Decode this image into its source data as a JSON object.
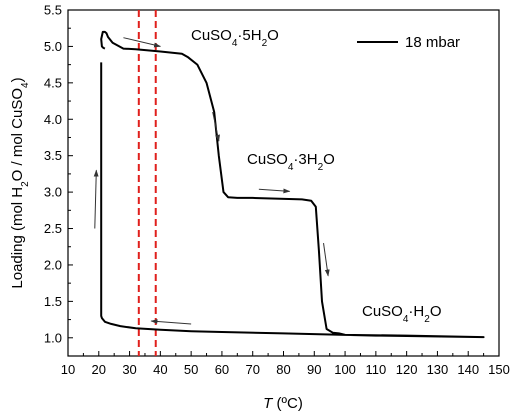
{
  "chart_data": {
    "type": "line",
    "xlabel_italic": "T",
    "xlabel_rest": " (ºC)",
    "ylabel": "Loading (mol H2O / mol CuSO4)",
    "xlim": [
      10,
      150
    ],
    "ylim": [
      0.75,
      5.5
    ],
    "x_ticks": [
      10,
      20,
      30,
      40,
      50,
      60,
      70,
      80,
      90,
      100,
      110,
      120,
      130,
      140,
      150
    ],
    "y_ticks": [
      1.0,
      1.5,
      2.0,
      2.5,
      3.0,
      3.5,
      4.0,
      4.5,
      5.0,
      5.5
    ],
    "grid": false,
    "legend": {
      "position": "top-right",
      "entries": [
        "18 mbar"
      ]
    },
    "series": [
      {
        "name": "18 mbar",
        "color": "#000000",
        "points": [
          [
            20.8,
            4.78
          ],
          [
            20.8,
            1.3
          ],
          [
            21.0,
            1.27
          ],
          [
            22.0,
            1.22
          ],
          [
            24.0,
            1.19
          ],
          [
            27.0,
            1.16
          ],
          [
            32.0,
            1.13
          ],
          [
            40.0,
            1.11
          ],
          [
            50.0,
            1.09
          ],
          [
            60.0,
            1.08
          ],
          [
            80.0,
            1.06
          ],
          [
            100.0,
            1.04
          ],
          [
            120.0,
            1.03
          ],
          [
            145.0,
            1.01
          ],
          [
            110.0,
            1.03
          ],
          [
            100.0,
            1.04
          ],
          [
            98.0,
            1.06
          ],
          [
            96.0,
            1.07
          ],
          [
            94.0,
            1.12
          ],
          [
            92.5,
            1.5
          ],
          [
            91.5,
            2.2
          ],
          [
            90.5,
            2.8
          ],
          [
            89.0,
            2.88
          ],
          [
            86.0,
            2.9
          ],
          [
            70.0,
            2.92
          ],
          [
            65.0,
            2.92
          ],
          [
            62.0,
            2.93
          ],
          [
            60.5,
            3.0
          ],
          [
            59.0,
            3.5
          ],
          [
            57.5,
            4.1
          ],
          [
            55.0,
            4.5
          ],
          [
            52.0,
            4.75
          ],
          [
            49.0,
            4.85
          ],
          [
            47.0,
            4.9
          ],
          [
            40.0,
            4.93
          ],
          [
            32.0,
            4.96
          ],
          [
            28.0,
            4.97
          ],
          [
            24.5,
            5.05
          ],
          [
            23.0,
            5.13
          ],
          [
            22.5,
            5.18
          ],
          [
            22.0,
            5.2
          ],
          [
            21.3,
            5.2
          ],
          [
            20.8,
            5.1
          ],
          [
            21.0,
            5.0
          ],
          [
            21.5,
            4.98
          ],
          [
            22.0,
            4.97
          ]
        ]
      }
    ],
    "reference_lines": [
      {
        "x": 33,
        "color": "#e0201c",
        "style": "dashed"
      },
      {
        "x": 38.5,
        "color": "#e0201c",
        "style": "dashed"
      }
    ],
    "annotations": [
      {
        "id": "pentahydrate",
        "formula": "CuSO4·5H2O",
        "x": 54,
        "y": 5.12
      },
      {
        "id": "trihydrate",
        "formula": "CuSO4·3H2O",
        "x": 66,
        "y": 3.4
      },
      {
        "id": "monohydrate",
        "formula": "CuSO4·H2O",
        "x": 111.5,
        "y": 1.35
      }
    ],
    "arrows": [
      {
        "from": [
          28,
          5.12
        ],
        "to": [
          40,
          5.0
        ]
      },
      {
        "from": [
          57,
          4.1
        ],
        "to": [
          59,
          3.7
        ]
      },
      {
        "from": [
          72,
          3.04
        ],
        "to": [
          82,
          3.01
        ]
      },
      {
        "from": [
          93,
          2.3
        ],
        "to": [
          94.5,
          1.85
        ]
      },
      {
        "from": [
          50,
          1.19
        ],
        "to": [
          37,
          1.23
        ]
      },
      {
        "from": [
          18.7,
          2.5
        ],
        "to": [
          19.2,
          3.3
        ]
      }
    ]
  }
}
